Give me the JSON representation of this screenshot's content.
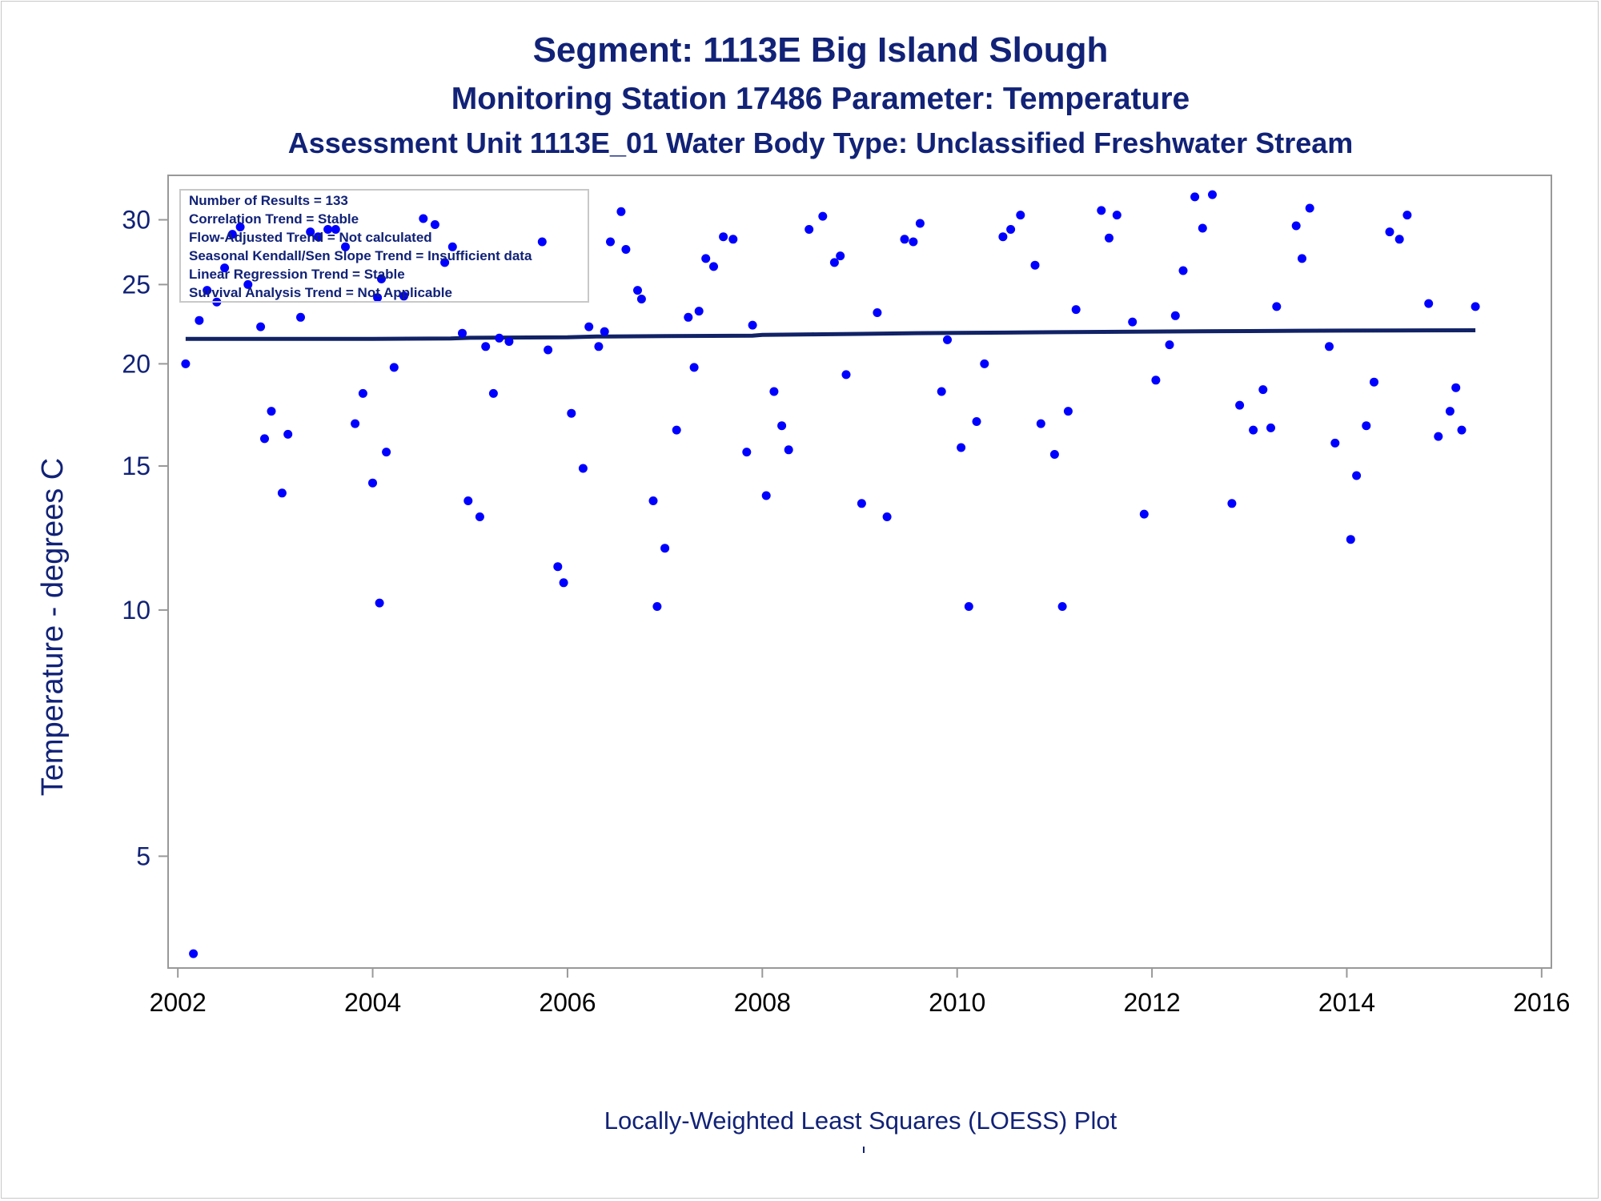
{
  "chart_data": {
    "type": "scatter",
    "title": "Segment: 1113E  Big Island Slough",
    "subtitle": "Monitoring Station 17486 Parameter: Temperature",
    "subtitle2": "Assessment Unit 1113E_01   Water Body Type: Unclassified Freshwater Stream",
    "ylabel": "Temperature - degrees C",
    "xlabel": "",
    "footnote": "Locally-Weighted Least Squares (LOESS) Plot",
    "y_scale": "log",
    "ylim": [
      3.65,
      34
    ],
    "xlim": [
      2001.9,
      2016.1
    ],
    "y_ticks": [
      5,
      10,
      15,
      20,
      25,
      30
    ],
    "x_ticks": [
      2002,
      2004,
      2006,
      2008,
      2010,
      2012,
      2014,
      2016
    ],
    "grid": false,
    "legend_position": "top-left",
    "stats": [
      "Number of Results = 133",
      "Correlation Trend = Stable",
      "Flow-Adjusted Trend = Not calculated",
      "Seasonal Kendall/Sen Slope Trend = Insufficient data",
      "Linear Regression Trend = Stable",
      "Survival Analysis Trend = Not Applicable"
    ],
    "colors": {
      "points": "#0000ff",
      "loess": "#112266",
      "text": "#112277",
      "axis": "#999999"
    },
    "series": [
      {
        "type": "scatter",
        "points": [
          [
            2002.08,
            20.0
          ],
          [
            2002.16,
            3.8
          ],
          [
            2002.22,
            22.6
          ],
          [
            2002.3,
            24.6
          ],
          [
            2002.4,
            23.8
          ],
          [
            2002.48,
            26.2
          ],
          [
            2002.56,
            28.8
          ],
          [
            2002.64,
            29.4
          ],
          [
            2002.72,
            25.0
          ],
          [
            2002.85,
            22.2
          ],
          [
            2002.89,
            16.2
          ],
          [
            2002.96,
            17.5
          ],
          [
            2003.07,
            13.9
          ],
          [
            2003.13,
            16.4
          ],
          [
            2003.26,
            22.8
          ],
          [
            2003.36,
            29.0
          ],
          [
            2003.44,
            28.6
          ],
          [
            2003.54,
            29.2
          ],
          [
            2003.62,
            29.2
          ],
          [
            2003.72,
            27.8
          ],
          [
            2003.82,
            16.9
          ],
          [
            2003.9,
            18.4
          ],
          [
            2004.0,
            14.3
          ],
          [
            2004.05,
            24.1
          ],
          [
            2004.09,
            25.4
          ],
          [
            2004.07,
            10.2
          ],
          [
            2004.14,
            15.6
          ],
          [
            2004.22,
            19.8
          ],
          [
            2004.32,
            24.2
          ],
          [
            2004.52,
            30.1
          ],
          [
            2004.64,
            29.6
          ],
          [
            2004.74,
            26.6
          ],
          [
            2004.82,
            27.8
          ],
          [
            2004.92,
            21.8
          ],
          [
            2004.98,
            13.6
          ],
          [
            2005.1,
            13.0
          ],
          [
            2005.16,
            21.0
          ],
          [
            2005.24,
            18.4
          ],
          [
            2005.3,
            21.5
          ],
          [
            2005.4,
            21.3
          ],
          [
            2005.74,
            28.2
          ],
          [
            2005.8,
            20.8
          ],
          [
            2005.9,
            11.3
          ],
          [
            2005.96,
            10.8
          ],
          [
            2006.04,
            17.4
          ],
          [
            2006.16,
            14.9
          ],
          [
            2006.22,
            22.2
          ],
          [
            2006.32,
            21.0
          ],
          [
            2006.38,
            21.9
          ],
          [
            2006.44,
            28.2
          ],
          [
            2006.55,
            30.7
          ],
          [
            2006.6,
            27.6
          ],
          [
            2006.72,
            24.6
          ],
          [
            2006.76,
            24.0
          ],
          [
            2006.88,
            13.6
          ],
          [
            2006.92,
            10.1
          ],
          [
            2007.0,
            11.9
          ],
          [
            2007.12,
            16.6
          ],
          [
            2007.24,
            22.8
          ],
          [
            2007.3,
            19.8
          ],
          [
            2007.35,
            23.2
          ],
          [
            2007.42,
            26.9
          ],
          [
            2007.5,
            26.3
          ],
          [
            2007.6,
            28.6
          ],
          [
            2007.7,
            28.4
          ],
          [
            2007.84,
            15.6
          ],
          [
            2007.9,
            22.3
          ],
          [
            2008.04,
            13.8
          ],
          [
            2008.12,
            18.5
          ],
          [
            2008.2,
            16.8
          ],
          [
            2008.27,
            15.7
          ],
          [
            2008.48,
            29.2
          ],
          [
            2008.62,
            30.3
          ],
          [
            2008.74,
            26.6
          ],
          [
            2008.8,
            27.1
          ],
          [
            2008.86,
            19.4
          ],
          [
            2009.02,
            13.5
          ],
          [
            2009.18,
            23.1
          ],
          [
            2009.28,
            13.0
          ],
          [
            2009.46,
            28.4
          ],
          [
            2009.55,
            28.2
          ],
          [
            2009.62,
            29.7
          ],
          [
            2009.84,
            18.5
          ],
          [
            2009.9,
            21.4
          ],
          [
            2010.04,
            15.8
          ],
          [
            2010.12,
            10.1
          ],
          [
            2010.2,
            17.0
          ],
          [
            2010.28,
            20.0
          ],
          [
            2010.47,
            28.6
          ],
          [
            2010.55,
            29.2
          ],
          [
            2010.65,
            30.4
          ],
          [
            2010.8,
            26.4
          ],
          [
            2010.86,
            16.9
          ],
          [
            2011.0,
            15.5
          ],
          [
            2011.08,
            10.1
          ],
          [
            2011.14,
            17.5
          ],
          [
            2011.22,
            23.3
          ],
          [
            2011.48,
            30.8
          ],
          [
            2011.56,
            28.5
          ],
          [
            2011.64,
            30.4
          ],
          [
            2011.8,
            22.5
          ],
          [
            2011.92,
            13.1
          ],
          [
            2012.04,
            19.1
          ],
          [
            2012.18,
            21.1
          ],
          [
            2012.24,
            22.9
          ],
          [
            2012.32,
            26.0
          ],
          [
            2012.44,
            32.0
          ],
          [
            2012.52,
            29.3
          ],
          [
            2012.62,
            32.2
          ],
          [
            2012.82,
            13.5
          ],
          [
            2012.9,
            17.8
          ],
          [
            2013.04,
            16.6
          ],
          [
            2013.14,
            18.6
          ],
          [
            2013.22,
            16.7
          ],
          [
            2013.28,
            23.5
          ],
          [
            2013.48,
            29.5
          ],
          [
            2013.54,
            26.9
          ],
          [
            2013.62,
            31.0
          ],
          [
            2013.82,
            21.0
          ],
          [
            2013.88,
            16.0
          ],
          [
            2014.04,
            12.2
          ],
          [
            2014.1,
            14.6
          ],
          [
            2014.2,
            16.8
          ],
          [
            2014.28,
            19.0
          ],
          [
            2014.44,
            29.0
          ],
          [
            2014.54,
            28.4
          ],
          [
            2014.62,
            30.4
          ],
          [
            2014.84,
            23.7
          ],
          [
            2014.94,
            16.3
          ],
          [
            2015.06,
            17.5
          ],
          [
            2015.12,
            18.7
          ],
          [
            2015.18,
            16.6
          ],
          [
            2015.32,
            23.5
          ]
        ]
      },
      {
        "type": "line",
        "name": "",
        "points": [
          [
            2002.08,
            21.45
          ],
          [
            2003.0,
            21.45
          ],
          [
            2004.0,
            21.45
          ],
          [
            2004.8,
            21.48
          ],
          [
            2005.0,
            21.52
          ],
          [
            2006.0,
            21.55
          ],
          [
            2006.3,
            21.6
          ],
          [
            2007.0,
            21.62
          ],
          [
            2007.9,
            21.65
          ],
          [
            2008.0,
            21.7
          ],
          [
            2008.5,
            21.73
          ],
          [
            2009.0,
            21.76
          ],
          [
            2009.5,
            21.8
          ],
          [
            2010.0,
            21.82
          ],
          [
            2010.5,
            21.84
          ],
          [
            2011.0,
            21.86
          ],
          [
            2011.5,
            21.88
          ],
          [
            2012.0,
            21.9
          ],
          [
            2012.5,
            21.92
          ],
          [
            2013.0,
            21.93
          ],
          [
            2013.5,
            21.95
          ],
          [
            2014.0,
            21.96
          ],
          [
            2014.5,
            21.97
          ],
          [
            2015.32,
            21.98
          ]
        ]
      }
    ]
  }
}
